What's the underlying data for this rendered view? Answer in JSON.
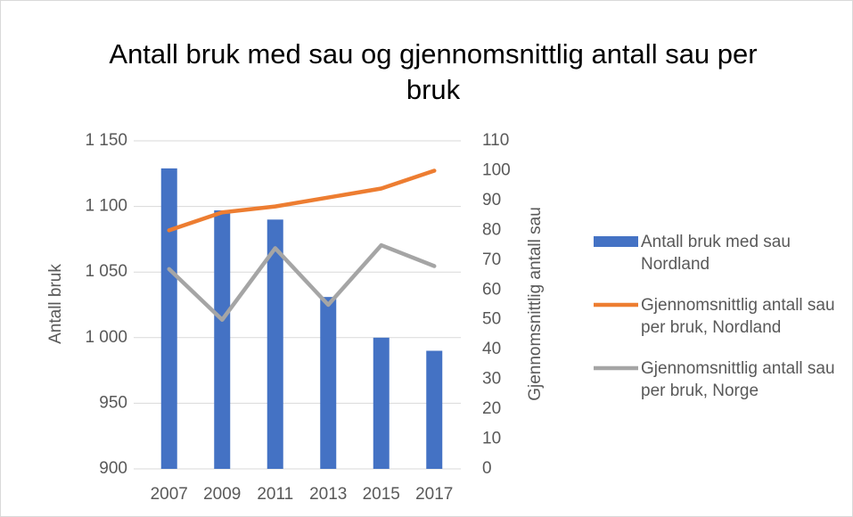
{
  "chart_data": {
    "type": "bar-line",
    "title": "Antall bruk med sau og gjennomsnittlig antall sau per bruk",
    "categories": [
      "2007",
      "2009",
      "2011",
      "2013",
      "2015",
      "2017"
    ],
    "ylabel": "Antall bruk",
    "y2label": "Gjennomsnittlig antall sau",
    "ylim": [
      900,
      1150
    ],
    "yticks": [
      900,
      950,
      {
        "value": 1000,
        "label": "1 000"
      },
      {
        "value": 1050,
        "label": "1 050"
      },
      {
        "value": 1100,
        "label": "1 100"
      },
      {
        "value": 1150,
        "label": "1 150"
      }
    ],
    "y2lim": [
      0,
      110
    ],
    "y2ticks": [
      0,
      10,
      20,
      30,
      40,
      50,
      60,
      70,
      80,
      90,
      100,
      110
    ],
    "grid": true,
    "legend": "right",
    "series": [
      {
        "name": "Antall bruk med sau Nordland",
        "type": "bar",
        "color": "#4472c4",
        "values": [
          1129,
          1097,
          1090,
          1031,
          1000,
          990
        ]
      },
      {
        "name": "Gjennomsnittlig antall sau per bruk, Nordland",
        "type": "line",
        "axis": "y2",
        "color": "#ed7d31",
        "values": [
          80,
          86,
          88,
          91,
          94,
          100
        ]
      },
      {
        "name": "Gjennomsnittlig antall sau per bruk, Norge",
        "type": "line",
        "axis": "y2",
        "color": "#a5a5a5",
        "values": [
          67,
          50,
          74,
          55,
          75,
          68
        ]
      }
    ]
  }
}
